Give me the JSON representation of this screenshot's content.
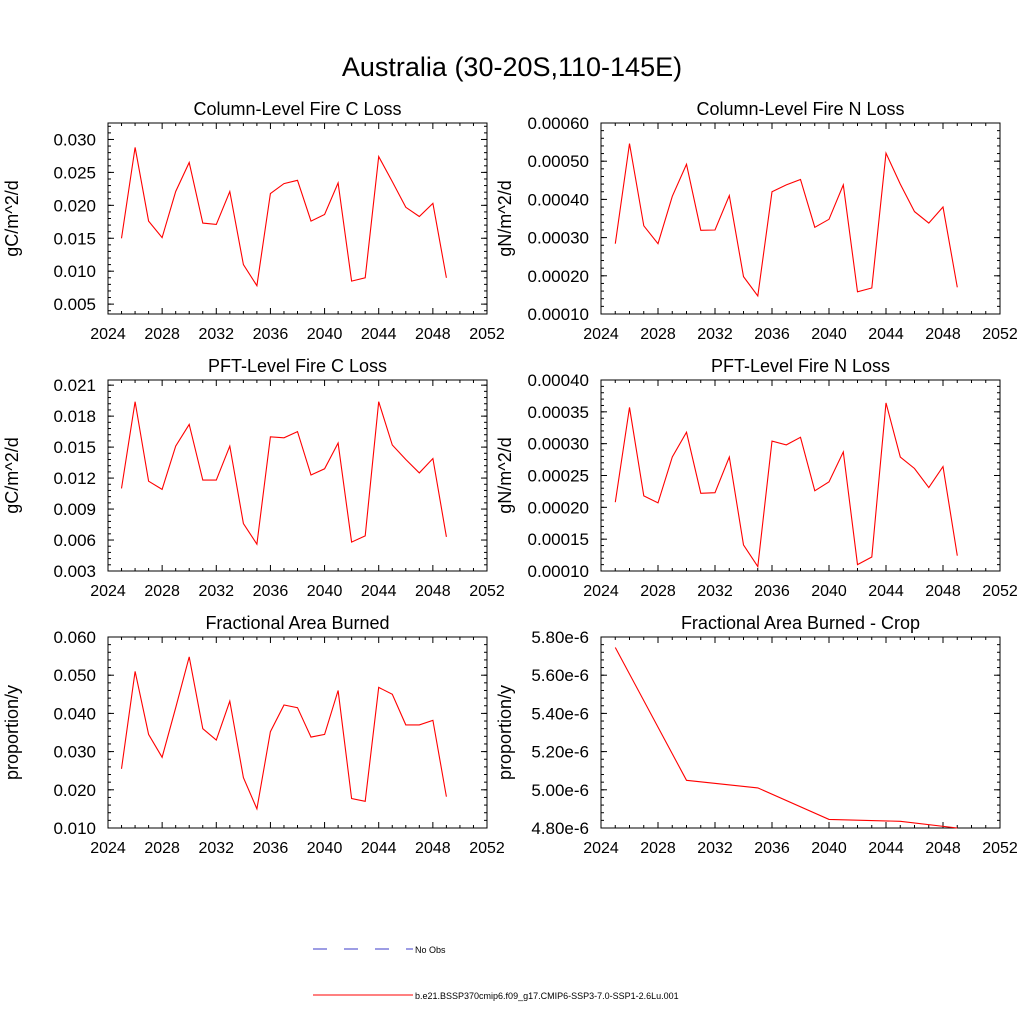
{
  "figure": {
    "title": "Australia (30-20S,110-145E)",
    "series_color": "#ff0000",
    "obs_color": "#3b3bc8"
  },
  "legend": {
    "obs_label": "No Obs",
    "model_label": "b.e21.BSSP370cmip6.f09_g17.CMIP6-SSP3-7.0-SSP1-2.6Lu.001"
  },
  "chart_data": [
    {
      "type": "line",
      "title": "Column-Level Fire C Loss",
      "ylabel": "gC/m^2/d",
      "xlim": [
        2024,
        2052
      ],
      "ylim": [
        0.0035,
        0.0325
      ],
      "xticks": [
        2024,
        2028,
        2032,
        2036,
        2040,
        2044,
        2048,
        2052
      ],
      "yticks": [
        "0.005",
        "0.010",
        "0.015",
        "0.020",
        "0.025",
        "0.030"
      ],
      "x": [
        2025,
        2026,
        2027,
        2028,
        2029,
        2030,
        2031,
        2032,
        2033,
        2034,
        2035,
        2036,
        2037,
        2038,
        2039,
        2040,
        2041,
        2042,
        2043,
        2044,
        2045,
        2046,
        2047,
        2048,
        2049
      ],
      "values": [
        0.015,
        0.0288,
        0.0176,
        0.0151,
        0.0221,
        0.0265,
        0.0173,
        0.0171,
        0.0221,
        0.011,
        0.0078,
        0.0218,
        0.0233,
        0.0238,
        0.0176,
        0.0186,
        0.0234,
        0.0085,
        0.009,
        0.0274,
        0.0236,
        0.0197,
        0.0183,
        0.0203,
        0.009
      ]
    },
    {
      "type": "line",
      "title": "Column-Level Fire N Loss",
      "ylabel": "gN/m^2/d",
      "xlim": [
        2024,
        2052
      ],
      "ylim": [
        0.0001,
        0.0006
      ],
      "xticks": [
        2024,
        2028,
        2032,
        2036,
        2040,
        2044,
        2048,
        2052
      ],
      "yticks": [
        "0.00010",
        "0.00020",
        "0.00030",
        "0.00040",
        "0.00050",
        "0.00060"
      ],
      "x": [
        2025,
        2026,
        2027,
        2028,
        2029,
        2030,
        2031,
        2032,
        2033,
        2034,
        2035,
        2036,
        2037,
        2038,
        2039,
        2040,
        2041,
        2042,
        2043,
        2044,
        2045,
        2046,
        2047,
        2048,
        2049
      ],
      "values": [
        0.000284,
        0.000546,
        0.000331,
        0.000284,
        0.000408,
        0.000492,
        0.000319,
        0.00032,
        0.00041,
        0.000198,
        0.000147,
        0.00042,
        0.000438,
        0.000452,
        0.000327,
        0.000348,
        0.000438,
        0.000158,
        0.000168,
        0.000521,
        0.00044,
        0.000368,
        0.000338,
        0.00038,
        0.00017
      ]
    },
    {
      "type": "line",
      "title": "PFT-Level Fire C Loss",
      "ylabel": "gC/m^2/d",
      "xlim": [
        2024,
        2052
      ],
      "ylim": [
        0.003,
        0.0215
      ],
      "xticks": [
        2024,
        2028,
        2032,
        2036,
        2040,
        2044,
        2048,
        2052
      ],
      "yticks": [
        "0.003",
        "0.006",
        "0.009",
        "0.012",
        "0.015",
        "0.018",
        "0.021"
      ],
      "x": [
        2025,
        2026,
        2027,
        2028,
        2029,
        2030,
        2031,
        2032,
        2033,
        2034,
        2035,
        2036,
        2037,
        2038,
        2039,
        2040,
        2041,
        2042,
        2043,
        2044,
        2045,
        2046,
        2047,
        2048,
        2049
      ],
      "values": [
        0.011,
        0.0194,
        0.0117,
        0.0109,
        0.0151,
        0.0172,
        0.0118,
        0.0118,
        0.0151,
        0.0076,
        0.0056,
        0.016,
        0.0159,
        0.0165,
        0.0123,
        0.0129,
        0.0154,
        0.0058,
        0.0064,
        0.0194,
        0.0152,
        0.0138,
        0.0125,
        0.0139,
        0.0063
      ]
    },
    {
      "type": "line",
      "title": "PFT-Level Fire N Loss",
      "ylabel": "gN/m^2/d",
      "xlim": [
        2024,
        2052
      ],
      "ylim": [
        0.0001,
        0.0004
      ],
      "xticks": [
        2024,
        2028,
        2032,
        2036,
        2040,
        2044,
        2048,
        2052
      ],
      "yticks": [
        "0.00010",
        "0.00015",
        "0.00020",
        "0.00025",
        "0.00030",
        "0.00035",
        "0.00040"
      ],
      "x": [
        2025,
        2026,
        2027,
        2028,
        2029,
        2030,
        2031,
        2032,
        2033,
        2034,
        2035,
        2036,
        2037,
        2038,
        2039,
        2040,
        2041,
        2042,
        2043,
        2044,
        2045,
        2046,
        2047,
        2048,
        2049
      ],
      "values": [
        0.000208,
        0.000357,
        0.000218,
        0.000207,
        0.000279,
        0.000318,
        0.000222,
        0.000223,
        0.000279,
        0.000141,
        0.000107,
        0.000304,
        0.000298,
        0.00031,
        0.000226,
        0.00024,
        0.000287,
        0.00011,
        0.000122,
        0.000364,
        0.000279,
        0.000261,
        0.000231,
        0.000264,
        0.000124
      ]
    },
    {
      "type": "line",
      "title": "Fractional Area Burned",
      "ylabel": "proportion/y",
      "xlim": [
        2024,
        2052
      ],
      "ylim": [
        0.01,
        0.06
      ],
      "xticks": [
        2024,
        2028,
        2032,
        2036,
        2040,
        2044,
        2048,
        2052
      ],
      "yticks": [
        "0.010",
        "0.020",
        "0.030",
        "0.040",
        "0.050",
        "0.060"
      ],
      "x": [
        2025,
        2026,
        2027,
        2028,
        2029,
        2030,
        2031,
        2032,
        2033,
        2034,
        2035,
        2036,
        2037,
        2038,
        2039,
        2040,
        2041,
        2042,
        2043,
        2044,
        2045,
        2046,
        2047,
        2048,
        2049
      ],
      "values": [
        0.0255,
        0.051,
        0.0345,
        0.0285,
        0.0415,
        0.0548,
        0.036,
        0.033,
        0.0432,
        0.0232,
        0.015,
        0.0352,
        0.0422,
        0.0415,
        0.0338,
        0.0345,
        0.046,
        0.0177,
        0.017,
        0.0468,
        0.045,
        0.037,
        0.037,
        0.0382,
        0.0182
      ]
    },
    {
      "type": "line",
      "title": "Fractional Area Burned - Crop",
      "ylabel": "proportion/y",
      "xlim": [
        2024,
        2052
      ],
      "ylim": [
        4.8e-06,
        5.8e-06
      ],
      "xticks": [
        2024,
        2028,
        2032,
        2036,
        2040,
        2044,
        2048,
        2052
      ],
      "yticks": [
        "4.80e-6",
        "5.00e-6",
        "5.20e-6",
        "5.40e-6",
        "5.60e-6",
        "5.80e-6"
      ],
      "x": [
        2025,
        2030,
        2035,
        2040,
        2045,
        2049
      ],
      "values": [
        5.745e-06,
        5.05e-06,
        5.01e-06,
        4.845e-06,
        4.835e-06,
        4.8e-06
      ]
    }
  ]
}
